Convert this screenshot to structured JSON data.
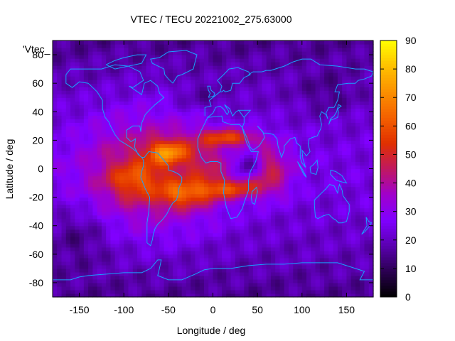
{
  "chart_data": {
    "type": "heatmap",
    "title": "VTEC / TECU 20221002_275.63000",
    "xlabel": "Longitude / deg",
    "ylabel": "Latitude / deg",
    "legend_key": "'Vtec_",
    "xlim": [
      -180,
      180
    ],
    "ylim": [
      -90,
      90
    ],
    "x_ticks": [
      -150,
      -100,
      -50,
      0,
      50,
      100,
      150
    ],
    "y_ticks": [
      -80,
      -60,
      -40,
      -20,
      0,
      20,
      40,
      60,
      80
    ],
    "colorbar": {
      "range": [
        0,
        90
      ],
      "ticks": [
        0,
        10,
        20,
        30,
        40,
        50,
        60,
        70,
        80,
        90
      ]
    },
    "palette": [
      "#000000",
      "#2a0050",
      "#5a00b0",
      "#8000ff",
      "#a000cc",
      "#c01860",
      "#e03000",
      "#f46000",
      "#fb9000",
      "#ffc000",
      "#ffff00"
    ],
    "coastline_color": "#1aa0ff",
    "field_description": "VTEC equatorial anomaly: maximum ~80 TECU over South America and the South Atlantic near longitude -60 to 20 deg, ring-shaped enhancement around Africa, background 10-25 TECU, minimum toward the poles",
    "peaks": [
      {
        "lon": -55,
        "lat": 12,
        "value": 82
      },
      {
        "lon": -40,
        "lat": -18,
        "value": 72
      },
      {
        "lon": 5,
        "lat": -12,
        "value": 65
      },
      {
        "lon": 20,
        "lat": 22,
        "value": 62
      },
      {
        "lon": 60,
        "lat": -5,
        "value": 55
      }
    ]
  }
}
